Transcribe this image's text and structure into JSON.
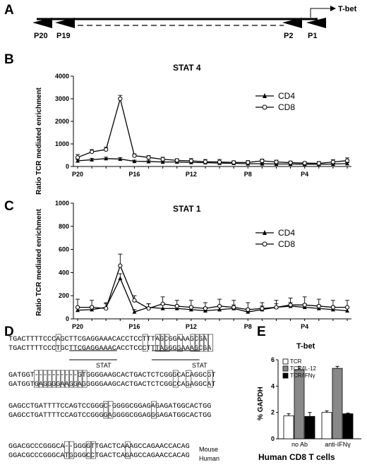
{
  "panel_labels": {
    "A": "A",
    "B": "B",
    "C": "C",
    "D": "D",
    "E": "E"
  },
  "panel_a": {
    "gene_label": "T-bet",
    "primers": [
      "P20",
      "P19",
      "P2",
      "P1"
    ]
  },
  "chart_data": [
    {
      "type": "line",
      "title": "STAT 4",
      "ylabel": "Ratio TCR mediated enrichment",
      "ylim": [
        0,
        4000
      ],
      "yticks": [
        0,
        1000,
        2000,
        3000,
        4000
      ],
      "x": [
        20,
        19,
        18,
        17,
        16,
        15,
        14,
        13,
        12,
        11,
        10,
        9,
        8,
        7,
        6,
        5,
        4,
        3,
        2,
        1
      ],
      "x_tick_labels": [
        "P20",
        "P16",
        "P12",
        "P8",
        "P4"
      ],
      "x_tick_positions": [
        20,
        16,
        12,
        8,
        4
      ],
      "legend_position": "right",
      "series": [
        {
          "name": "CD4",
          "marker": "triangle-filled",
          "values": [
            250,
            300,
            350,
            330,
            230,
            220,
            200,
            200,
            180,
            170,
            150,
            140,
            120,
            120,
            110,
            110,
            100,
            100,
            110,
            130
          ],
          "errors": [
            60,
            60,
            60,
            60,
            50,
            60,
            50,
            40,
            40,
            40,
            40,
            40,
            40,
            40,
            40,
            40,
            40,
            40,
            40,
            40
          ]
        },
        {
          "name": "CD8",
          "marker": "circle-open",
          "values": [
            400,
            650,
            750,
            3000,
            480,
            400,
            320,
            270,
            250,
            210,
            200,
            180,
            180,
            250,
            200,
            170,
            150,
            140,
            200,
            260
          ],
          "errors": [
            130,
            100,
            100,
            150,
            80,
            80,
            90,
            70,
            100,
            100,
            110,
            70,
            80,
            80,
            80,
            70,
            60,
            80,
            100,
            120
          ]
        }
      ]
    },
    {
      "type": "line",
      "title": "STAT 1",
      "ylabel": "Ratio TCR mediated enrichment",
      "ylim": [
        0,
        1000
      ],
      "yticks": [
        0,
        200,
        400,
        600,
        800,
        1000
      ],
      "x": [
        20,
        19,
        18,
        17,
        16,
        15,
        14,
        13,
        12,
        11,
        10,
        9,
        8,
        7,
        6,
        5,
        4,
        3,
        2,
        1
      ],
      "x_tick_labels": [
        "P20",
        "P16",
        "P12",
        "P8",
        "P4"
      ],
      "x_tick_positions": [
        20,
        16,
        12,
        8,
        4
      ],
      "legend_position": "right",
      "series": [
        {
          "name": "CD4",
          "marker": "triangle-filled",
          "values": [
            75,
            80,
            100,
            350,
            60,
            100,
            90,
            90,
            80,
            70,
            80,
            90,
            60,
            80,
            100,
            110,
            100,
            90,
            80,
            70
          ],
          "errors": [
            30,
            30,
            30,
            40,
            20,
            30,
            30,
            30,
            30,
            30,
            30,
            30,
            30,
            30,
            30,
            30,
            30,
            30,
            30,
            30
          ]
        },
        {
          "name": "CD8",
          "marker": "circle-open",
          "values": [
            100,
            100,
            90,
            460,
            160,
            90,
            130,
            110,
            100,
            90,
            110,
            100,
            80,
            90,
            100,
            120,
            120,
            110,
            100,
            100
          ],
          "errors": [
            70,
            60,
            50,
            100,
            40,
            40,
            60,
            50,
            60,
            50,
            60,
            60,
            60,
            50,
            60,
            60,
            70,
            60,
            60,
            60
          ]
        }
      ]
    },
    {
      "type": "bar",
      "title": "T-bet",
      "ylabel": "% GAPDH",
      "xlabel": "Human CD8 T cells",
      "ylim": [
        0,
        6
      ],
      "yticks": [
        0,
        2,
        4,
        6
      ],
      "categories": [
        "no Ab",
        "anti-IFNγ"
      ],
      "legend_position": "top-left",
      "series": [
        {
          "name": "TCR",
          "color": "#ffffff",
          "values": [
            1.75,
            2.0
          ],
          "errors": [
            0.15,
            0.12
          ]
        },
        {
          "name": "TCR/IL-12",
          "color": "#888888",
          "values": [
            5.25,
            5.35
          ],
          "errors": [
            0.25,
            0.15
          ]
        },
        {
          "name": "TCR/IFNγ",
          "color": "#000000",
          "values": [
            1.7,
            1.9
          ],
          "errors": [
            0.3,
            0.05
          ]
        }
      ]
    }
  ],
  "panel_d": {
    "blocks": [
      [
        "TGACTTTTCCCAGCTTCGAGGAAACACCTCCTTTAGCGGAAAGCGA",
        "TGACTTTTCCCTGCTTCGAGGAAACACCTCCCTTTAGGGGAAAGCGA"
      ],
      [
        "GATGGT----------GTGGGGAAGCACTGACTCTCGGGCACAGGCGT",
        "GATGGTGAGGGGAAGGAGGGGGAAGCACTGACTCTCGGCCAGAGGCAT"
      ],
      [
        "GAGCCTGATTTTCCAGTCCGGGC-GGGGCGGAGAGAGATGGCACTGG",
        "GAGCCTGATTTTCCAGTCCGGGGAGGGGCGGAGGGAGATGGCACTGG"
      ],
      [
        "GGACGCCCGGGCA--GGGGTTGACTCAAAGCCAGAACCACAG",
        "GGACGCCCGGGCATGGGGCCTGACTCAGAGCCAGAACCACAG"
      ]
    ],
    "stat_labels": [
      "STAT",
      "STAT"
    ],
    "species": [
      "Mouse",
      "Human"
    ]
  }
}
